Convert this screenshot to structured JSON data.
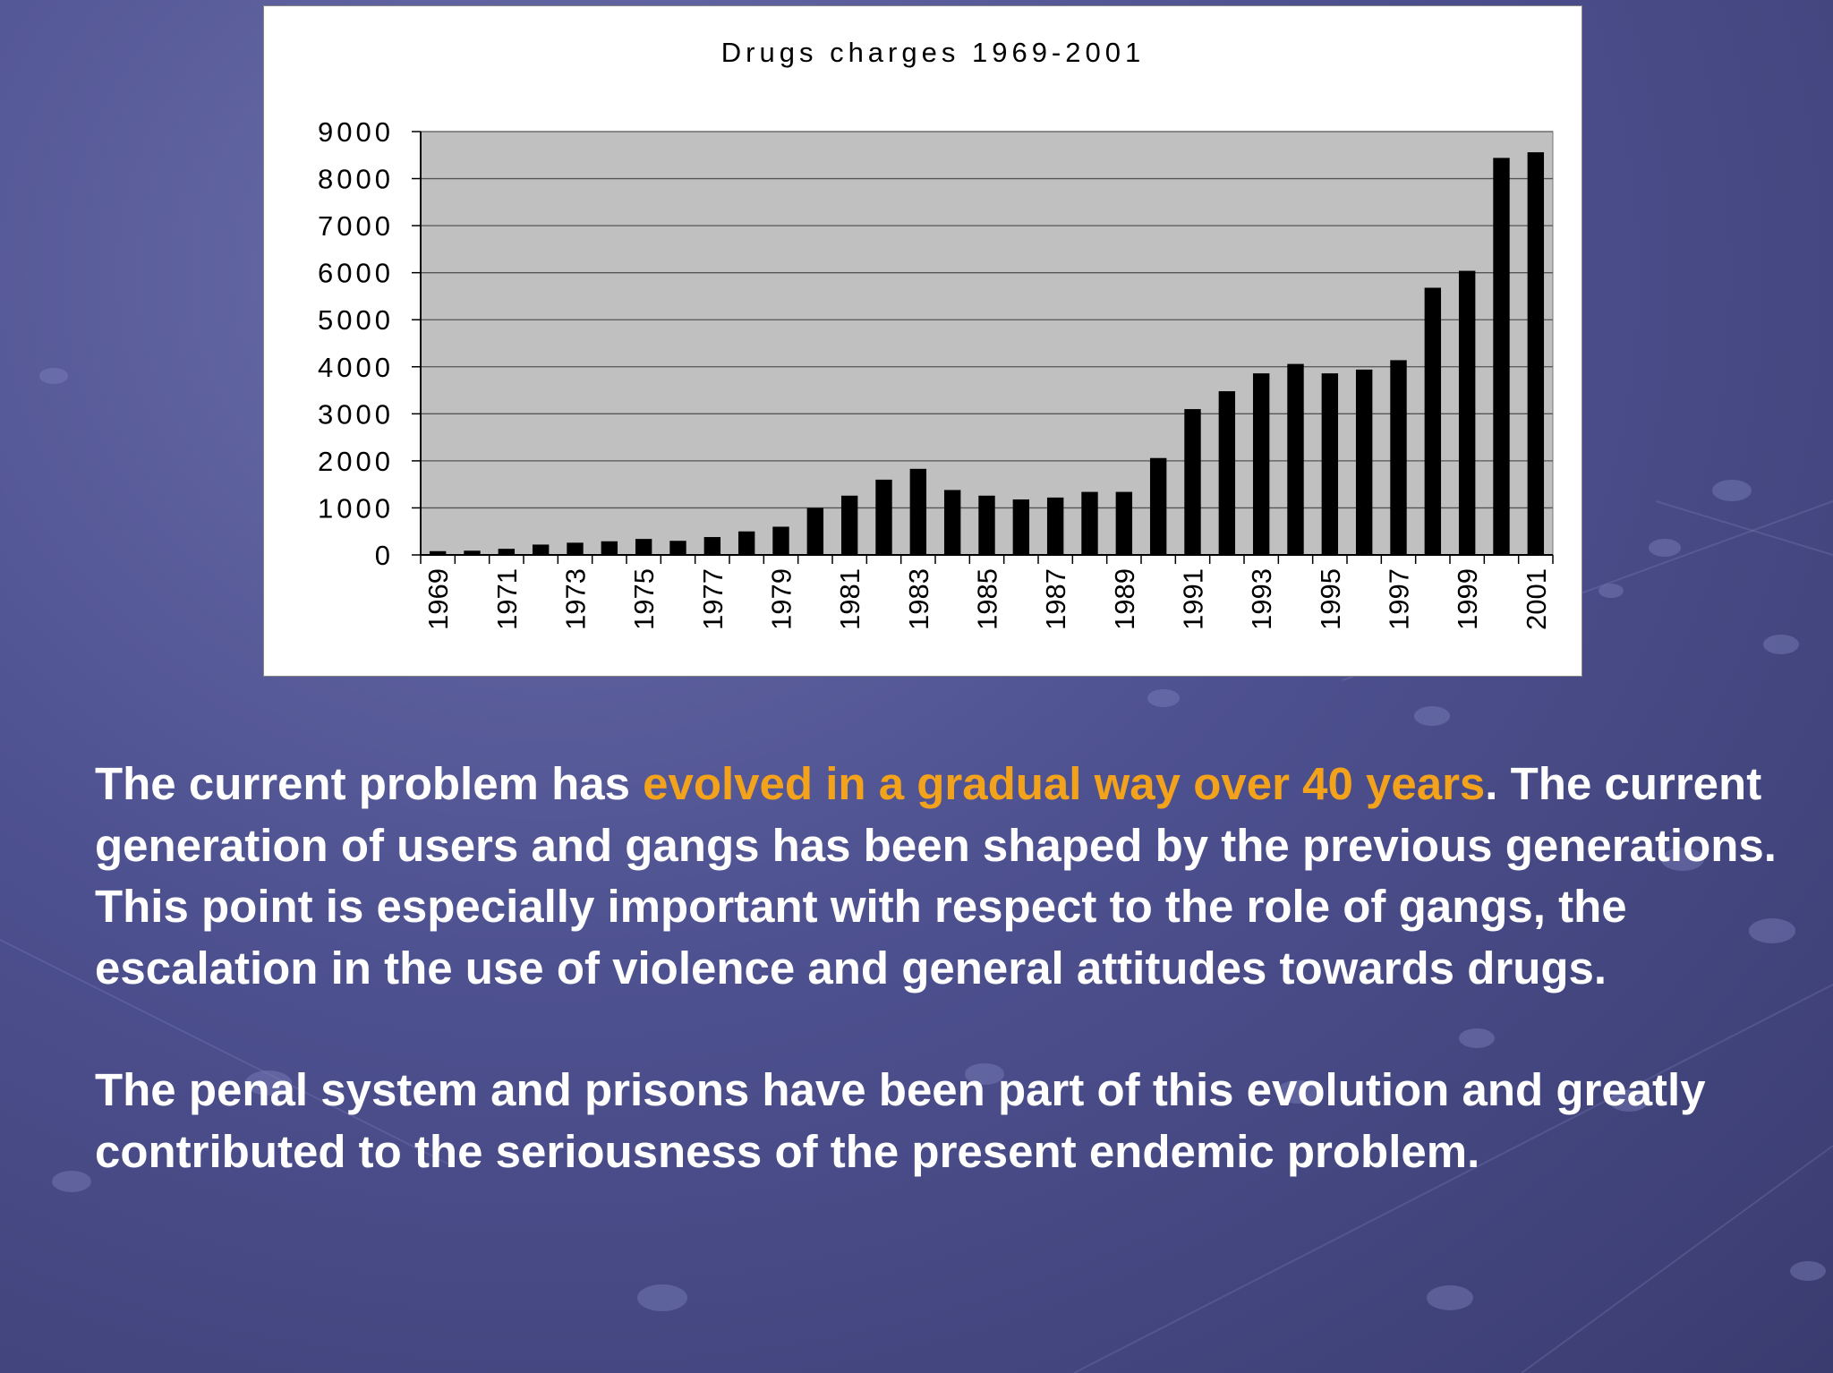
{
  "chart_data": {
    "type": "bar",
    "title": "Drugs charges 1969-2001",
    "xlabel": "",
    "ylabel": "",
    "ylim": [
      0,
      9000
    ],
    "yticks": [
      0,
      1000,
      2000,
      3000,
      4000,
      5000,
      6000,
      7000,
      8000,
      9000
    ],
    "grid": true,
    "legend": "none",
    "categories": [
      "1969",
      "1970",
      "1971",
      "1972",
      "1973",
      "1974",
      "1975",
      "1976",
      "1977",
      "1978",
      "1979",
      "1980",
      "1981",
      "1982",
      "1983",
      "1984",
      "1985",
      "1986",
      "1987",
      "1988",
      "1989",
      "1990",
      "1991",
      "1992",
      "1993",
      "1994",
      "1995",
      "1996",
      "1997",
      "1998",
      "1999",
      "2000",
      "2001"
    ],
    "tick_labels": [
      "1969",
      "1971",
      "1973",
      "1975",
      "1977",
      "1979",
      "1981",
      "1983",
      "1985",
      "1987",
      "1989",
      "1991",
      "1993",
      "1995",
      "1997",
      "1999",
      "2001"
    ],
    "series": [
      {
        "name": "Drugs charges",
        "values": [
          80,
          90,
          130,
          220,
          260,
          290,
          340,
          300,
          380,
          500,
          600,
          1000,
          1260,
          1600,
          1830,
          1380,
          1260,
          1180,
          1220,
          1340,
          1340,
          2060,
          3100,
          3480,
          3860,
          4060,
          3860,
          3940,
          4140,
          5680,
          6040,
          8440,
          8560
        ]
      }
    ],
    "colors": {
      "bar": "#000000",
      "plot_area": "#c0c0c0",
      "gridline": "#555555"
    }
  },
  "text": {
    "para1_part1": "The current problem has ",
    "para1_highlight": "evolved in a gradual way over 40 years",
    "para1_part2": ". The current generation of users and gangs has been shaped by the previous generations. This point is especially important with respect to the role of gangs, the escalation in the use of violence and general attitudes towards drugs.",
    "para2": "The penal system and prisons have been part of this evolution and greatly contributed to the seriousness of the present endemic problem.",
    "highlight_color": "#f3a21c"
  }
}
